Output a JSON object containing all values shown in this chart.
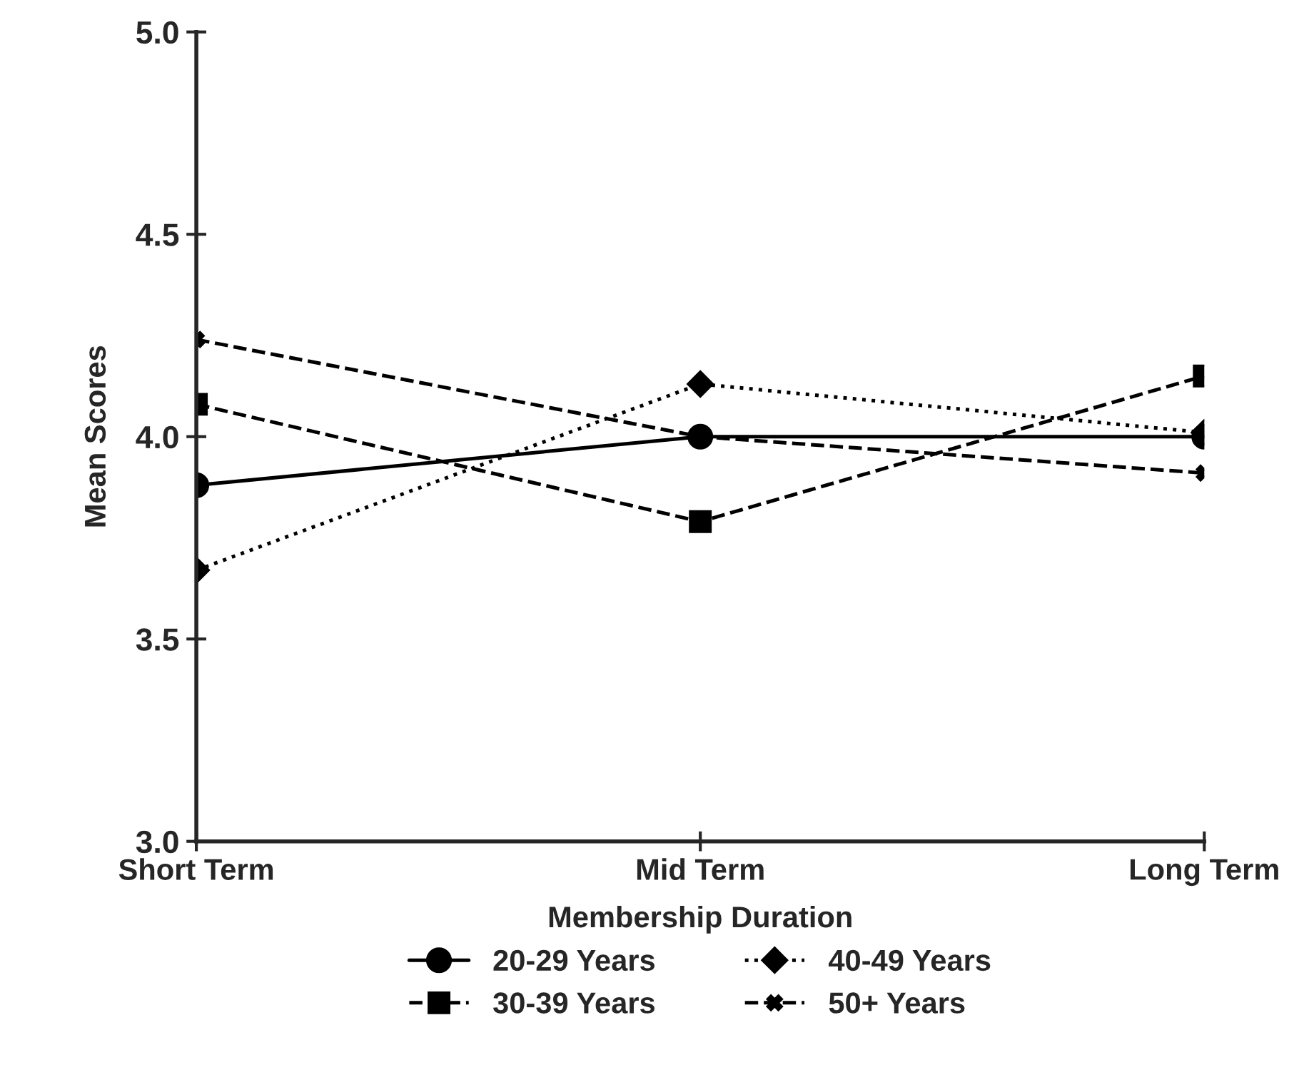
{
  "chart_data": {
    "type": "line",
    "xlabel": "Membership Duration",
    "ylabel": "Mean Scores",
    "categories": [
      "Short Term",
      "Mid Term",
      "Long Term"
    ],
    "series": [
      {
        "name": "20-29 Years",
        "color": "#000000",
        "marker": "circle",
        "line_style": "solid",
        "values": [
          3.88,
          4.0,
          4.0
        ]
      },
      {
        "name": "30-39 Years",
        "color": "#000000",
        "marker": "square",
        "line_style": "dashed",
        "values": [
          4.08,
          3.79,
          4.15
        ]
      },
      {
        "name": "40-49 Years",
        "color": "#000000",
        "marker": "diamond",
        "line_style": "dotted",
        "values": [
          3.67,
          4.13,
          4.01
        ]
      },
      {
        "name": "50+ Years",
        "color": "#000000",
        "marker": "cross",
        "line_style": "dashed",
        "values": [
          4.24,
          4.0,
          3.91
        ]
      }
    ],
    "ylim": [
      3.0,
      5.0
    ],
    "yticks": [
      {
        "value": 3.0,
        "label": "3.0"
      },
      {
        "value": 3.5,
        "label": "3.5"
      },
      {
        "value": 4.0,
        "label": "4.0"
      },
      {
        "value": 4.5,
        "label": "4.5"
      },
      {
        "value": 5.0,
        "label": "5.0"
      }
    ],
    "grid": false,
    "legend": "bottom"
  }
}
